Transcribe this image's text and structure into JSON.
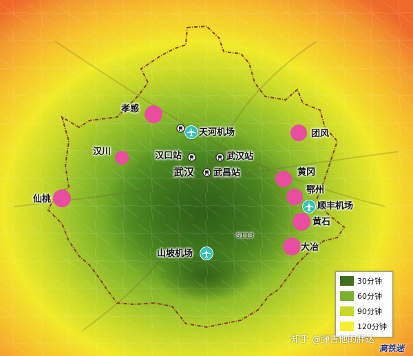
{
  "places": {
    "xiaogan": "孝感",
    "hanchuan": "汉川",
    "xiantao": "仙桃",
    "tuanfeng": "团风",
    "huanggang": "黄冈",
    "ezhou": "鄂州",
    "huangshi": "黄石",
    "daye": "大冶",
    "wuhan": "武汉"
  },
  "stations": {
    "hankou": "汉口站",
    "wuhan": "武汉站",
    "wuchang": "武昌站"
  },
  "airports": {
    "tianhe": "天河机场",
    "shunfeng": "顺丰机场",
    "shanpo": "山坡机场"
  },
  "roads": {
    "s113": "S113"
  },
  "colors": {
    "boundary": "#8a3a2a",
    "city_dot": "#e84d9f",
    "airport": "#35c2b7"
  },
  "legend": [
    {
      "label": "30分钟",
      "color": "#3f6f1c"
    },
    {
      "label": "60分钟",
      "color": "#79b02c"
    },
    {
      "label": "90分钟",
      "color": "#c9d926"
    },
    {
      "label": "120分钟",
      "color": "#f6ef2a"
    }
  ],
  "watermark": "知乎 @弹吉他的胖达",
  "logo": "高铁迷"
}
